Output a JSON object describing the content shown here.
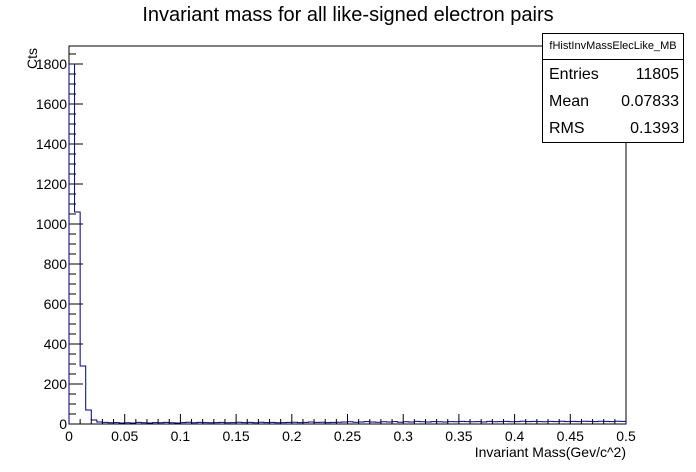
{
  "chart_data": {
    "type": "histogram",
    "title": "Invariant mass for all like-signed electron pairs",
    "xlabel": "Invariant Mass(Gev/c^2)",
    "ylabel": "Cts",
    "xlim": [
      0,
      0.5
    ],
    "ylim": [
      0,
      1890
    ],
    "xticks": [
      "0",
      "0.05",
      "0.1",
      "0.15",
      "0.2",
      "0.25",
      "0.3",
      "0.35",
      "0.4",
      "0.45",
      "0.5"
    ],
    "yticks": [
      "0",
      "200",
      "400",
      "600",
      "800",
      "1000",
      "1200",
      "1400",
      "1600",
      "1800"
    ],
    "bin_width": 0.005,
    "series": [
      {
        "color": "#00007f",
        "values": [
          1800,
          1060,
          290,
          70,
          20,
          10,
          8,
          6,
          7,
          5,
          6,
          5,
          8,
          6,
          5,
          7,
          6,
          8,
          6,
          5,
          7,
          9,
          6,
          8,
          7,
          6,
          7,
          8,
          6,
          7,
          9,
          7,
          8,
          6,
          9,
          7,
          8,
          6,
          7,
          8,
          9,
          7,
          8,
          10,
          8,
          9,
          7,
          8,
          9,
          10,
          11,
          9,
          10,
          12,
          10,
          9,
          11,
          10,
          12,
          9,
          11,
          10,
          13,
          11,
          10,
          12,
          11,
          10,
          12,
          11,
          13,
          12,
          11,
          12,
          10,
          13,
          11,
          12,
          13,
          11,
          12,
          14,
          12,
          13,
          12,
          11,
          13,
          12,
          14,
          12,
          13,
          12,
          14,
          13,
          12,
          14,
          13,
          12,
          14,
          13
        ]
      }
    ]
  },
  "stats": {
    "name": "fHistInvMassElecLike_MB",
    "rows": [
      {
        "key": "Entries",
        "value": "11805"
      },
      {
        "key": "Mean",
        "value": "0.07833"
      },
      {
        "key": "RMS",
        "value": "0.1393"
      }
    ]
  }
}
